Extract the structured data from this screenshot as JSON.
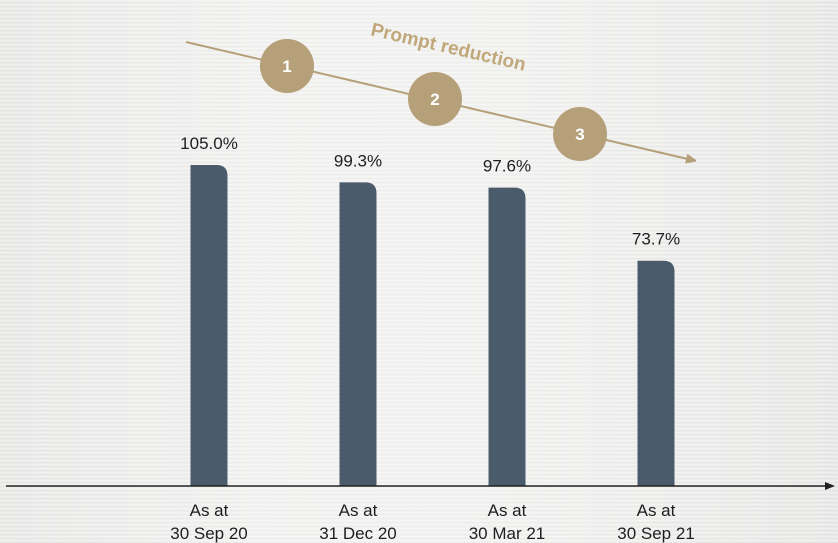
{
  "chart_data": {
    "type": "bar",
    "categories": [
      [
        "As at",
        "30 Sep 20"
      ],
      [
        "As at",
        "31 Dec 20"
      ],
      [
        "As at",
        "30 Mar 21"
      ],
      [
        "As at",
        "30 Sep 21"
      ]
    ],
    "values": [
      105.0,
      99.3,
      97.6,
      73.7
    ],
    "value_labels": [
      "105.0%",
      "99.3%",
      "97.6%",
      "73.7%"
    ],
    "title": "",
    "xlabel": "",
    "ylabel": "",
    "ylim": [
      0,
      110
    ],
    "grid": false,
    "legend": "none",
    "annotation": {
      "text": "Prompt reduction",
      "steps": [
        "1",
        "2",
        "3"
      ]
    },
    "colors": {
      "bar": "#4a5b6b",
      "accent": "#b5a07a",
      "annotation_text": "#c0a87a",
      "axis": "#222222"
    }
  }
}
